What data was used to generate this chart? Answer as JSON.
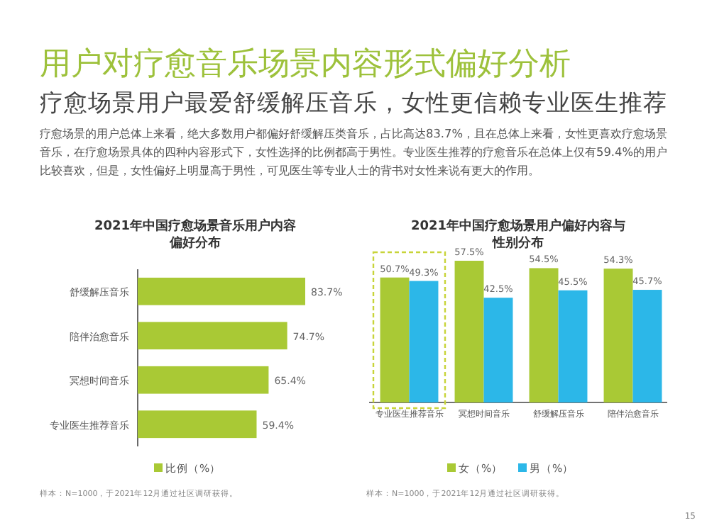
{
  "chart_data": [
    {
      "type": "other",
      "title": "用户对疗愈音乐场景内容形式偏好分析",
      "subtitle": "疗愈场景用户最爱舒缓解压音乐，女性更信赖专业医生推荐",
      "annotations": [
        "疗愈场景的用户总体上来看，绝大多数用户都偏好舒缓解压类音乐，占比高达83.7%，且在总体上来看，女性更喜欢疗愈场景音乐，在疗愈场景具体的四种内容形式下，女性选择的比例都高于男性。专业医生推荐的疗愈音乐在总体上仅有59.4%的用户比较喜欢，但是，女性偏好上明显高于男性，可见医生等专业人士的背书对女性来说有更大的作用。"
      ]
    },
    {
      "type": "bar",
      "orientation": "horizontal",
      "title": "2021年中国疗愈场景音乐用户内容偏好分布",
      "categories": [
        "舒缓解压音乐",
        "陪伴治愈音乐",
        "冥想时间音乐",
        "专业医生推荐音乐"
      ],
      "series": [
        {
          "name": "比例（%）",
          "color": "#a9c935",
          "values": [
            83.7,
            74.7,
            65.4,
            59.4
          ],
          "value_labels": [
            "83.7%",
            "74.7%",
            "65.4%",
            "59.4%"
          ]
        }
      ],
      "legend": "bottom",
      "annotations": [
        "样本：N=1000，于2021年12月通过社区调研获得。"
      ]
    },
    {
      "type": "bar",
      "title": "2021年中国疗愈场景用户偏好内容与性别分布",
      "categories": [
        "专业医生推荐音乐",
        "冥想时间音乐",
        "舒缓解压音乐",
        "陪伴治愈音乐"
      ],
      "series": [
        {
          "name": "女（%）",
          "color": "#a9c935",
          "values": [
            50.7,
            57.5,
            54.5,
            54.3
          ],
          "value_labels": [
            "50.7%",
            "57.5%",
            "54.5%",
            "54.3%"
          ]
        },
        {
          "name": "男（%）",
          "color": "#2cb7e8",
          "values": [
            49.3,
            42.5,
            45.5,
            45.7
          ],
          "value_labels": [
            "49.3%",
            "42.5%",
            "45.5%",
            "45.7%"
          ]
        }
      ],
      "legend": "bottom",
      "annotations": [
        "样本：N=1000，于2021年12月通过社区调研获得。",
        "15"
      ]
    }
  ]
}
